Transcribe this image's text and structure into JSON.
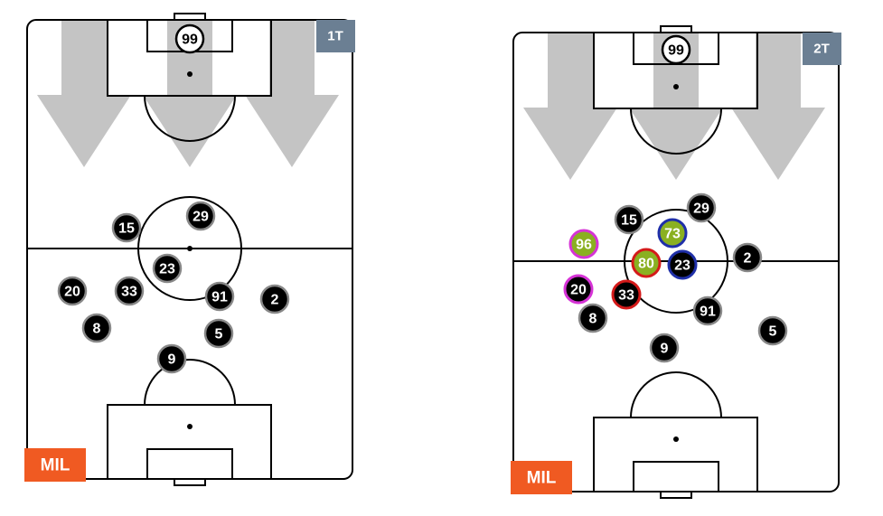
{
  "pitches": [
    {
      "period": "1T",
      "team": "MIL",
      "players": [
        "99",
        "15",
        "29",
        "23",
        "20",
        "33",
        "91",
        "2",
        "8",
        "5",
        "9"
      ]
    },
    {
      "period": "2T",
      "team": "MIL",
      "players": [
        "99",
        "15",
        "29",
        "73",
        "96",
        "80",
        "23",
        "2",
        "20",
        "33",
        "8",
        "91",
        "9",
        "5"
      ]
    }
  ]
}
